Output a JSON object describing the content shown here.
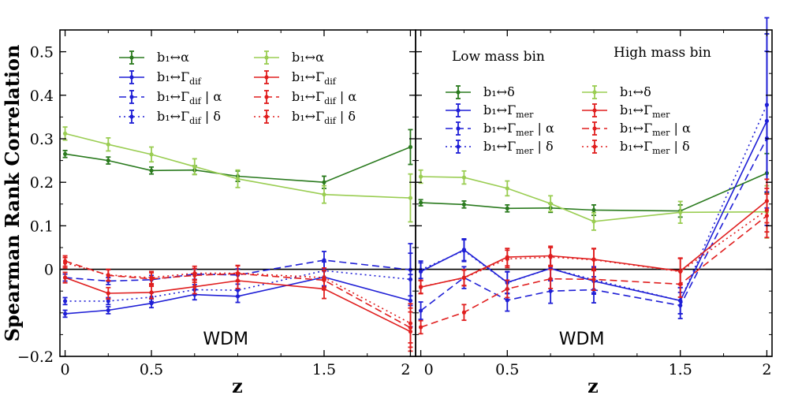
{
  "chart_data": {
    "type": "line",
    "ylabel": "Spearman Rank Correlation",
    "xlabel": "z",
    "ylim": [
      -0.2,
      0.55
    ],
    "xlim": [
      -0.03,
      2.03
    ],
    "yticks": [
      {
        "v": -0.2,
        "t": "−0.2"
      },
      {
        "v": 0,
        "t": "0"
      },
      {
        "v": 0.1,
        "t": "0.1"
      },
      {
        "v": 0.2,
        "t": "0.2"
      },
      {
        "v": 0.3,
        "t": "0.3"
      },
      {
        "v": 0.4,
        "t": "0.4"
      },
      {
        "v": 0.5,
        "t": "0.5"
      }
    ],
    "xticks": [
      {
        "v": 0,
        "t": "0"
      },
      {
        "v": 0.5,
        "t": "0.5"
      },
      {
        "v": 1.5,
        "t": "1.5"
      },
      {
        "v": 2,
        "t": "2"
      }
    ],
    "x": [
      0,
      0.25,
      0.5,
      0.75,
      1.0,
      1.5,
      2.0
    ],
    "colors": {
      "dark_green": "#2a7a1e",
      "light_green": "#9acd52",
      "blue": "#1f1fd6",
      "red": "#e01e1e"
    },
    "panels": [
      {
        "annotation": "WDM",
        "legend_left": [
          {
            "label": "b₁↔α",
            "color": "dark_green",
            "style": "solid"
          },
          {
            "label": "b₁↔Γdif",
            "color": "blue",
            "style": "solid"
          },
          {
            "label": "b₁↔Γdif | α",
            "color": "blue",
            "style": "dashed"
          },
          {
            "label": "b₁↔Γdif | δ",
            "color": "blue",
            "style": "dotted"
          }
        ],
        "legend_right": [
          {
            "label": "b₁↔α",
            "color": "light_green",
            "style": "solid"
          },
          {
            "label": "b₁↔Γdif",
            "color": "red",
            "style": "solid"
          },
          {
            "label": "b₁↔Γdif | α",
            "color": "red",
            "style": "dashed"
          },
          {
            "label": "b₁↔Γdif | δ",
            "color": "red",
            "style": "dotted"
          }
        ],
        "series": [
          {
            "color": "dark_green",
            "style": "solid",
            "values": [
              0.265,
              0.25,
              0.227,
              0.228,
              0.214,
              0.2,
              0.281
            ],
            "err": [
              0.008,
              0.008,
              0.008,
              0.01,
              0.012,
              0.014,
              0.04
            ]
          },
          {
            "color": "light_green",
            "style": "solid",
            "values": [
              0.312,
              0.287,
              0.264,
              0.236,
              0.208,
              0.172,
              0.164
            ],
            "err": [
              0.015,
              0.015,
              0.017,
              0.018,
              0.02,
              0.02,
              0.055
            ]
          },
          {
            "color": "blue",
            "style": "solid",
            "values": [
              -0.102,
              -0.094,
              -0.078,
              -0.058,
              -0.062,
              -0.018,
              -0.072
            ],
            "err": [
              0.008,
              0.008,
              0.01,
              0.012,
              0.014,
              0.02,
              0.06
            ]
          },
          {
            "color": "blue",
            "style": "dashed",
            "values": [
              -0.019,
              -0.027,
              -0.024,
              -0.011,
              -0.013,
              0.021,
              -0.001
            ],
            "err": [
              0.008,
              0.008,
              0.01,
              0.012,
              0.014,
              0.02,
              0.06
            ]
          },
          {
            "color": "blue",
            "style": "dotted",
            "values": [
              -0.073,
              -0.073,
              -0.064,
              -0.047,
              -0.048,
              -0.003,
              -0.023
            ],
            "err": [
              0.008,
              0.008,
              0.01,
              0.012,
              0.014,
              0.02,
              0.06
            ]
          },
          {
            "color": "red",
            "style": "solid",
            "values": [
              -0.019,
              -0.055,
              -0.053,
              -0.04,
              -0.026,
              -0.045,
              -0.143
            ],
            "err": [
              0.012,
              0.013,
              0.014,
              0.016,
              0.018,
              0.022,
              0.045
            ]
          },
          {
            "color": "red",
            "style": "dashed",
            "values": [
              0.019,
              -0.014,
              -0.022,
              -0.014,
              -0.01,
              -0.025,
              -0.134
            ],
            "err": [
              0.012,
              0.013,
              0.014,
              0.016,
              0.018,
              0.022,
              0.045
            ]
          },
          {
            "color": "red",
            "style": "dotted",
            "values": [
              0.015,
              -0.013,
              -0.019,
              -0.009,
              -0.009,
              -0.019,
              -0.124
            ],
            "err": [
              0.012,
              0.013,
              0.014,
              0.016,
              0.018,
              0.022,
              0.045
            ]
          }
        ]
      },
      {
        "annotation": "WDM",
        "header_left": "Low mass bin",
        "header_right": "High mass bin",
        "legend_left": [
          {
            "label": "b₁↔δ",
            "color": "dark_green",
            "style": "solid"
          },
          {
            "label": "b₁↔Γmer",
            "color": "blue",
            "style": "solid"
          },
          {
            "label": "b₁↔Γmer | α",
            "color": "blue",
            "style": "dashed"
          },
          {
            "label": "b₁↔Γmer | δ",
            "color": "blue",
            "style": "dotted"
          }
        ],
        "legend_right": [
          {
            "label": "b₁↔δ",
            "color": "light_green",
            "style": "solid"
          },
          {
            "label": "b₁↔Γmer",
            "color": "red",
            "style": "solid"
          },
          {
            "label": "b₁↔Γmer | α",
            "color": "red",
            "style": "dashed"
          },
          {
            "label": "b₁↔Γmer | δ",
            "color": "red",
            "style": "dotted"
          }
        ],
        "series": [
          {
            "color": "dark_green",
            "style": "solid",
            "values": [
              0.153,
              0.149,
              0.14,
              0.141,
              0.136,
              0.134,
              0.221
            ],
            "err": [
              0.007,
              0.008,
              0.008,
              0.01,
              0.012,
              0.014,
              0.045
            ]
          },
          {
            "color": "light_green",
            "style": "solid",
            "values": [
              0.213,
              0.211,
              0.186,
              0.151,
              0.11,
              0.131,
              0.132
            ],
            "err": [
              0.015,
              0.015,
              0.017,
              0.018,
              0.02,
              0.025,
              0.06
            ]
          },
          {
            "color": "blue",
            "style": "solid",
            "values": [
              -0.005,
              0.045,
              -0.03,
              0.002,
              -0.027,
              -0.072,
              0.341
            ],
            "err": [
              0.02,
              0.025,
              0.025,
              0.028,
              0.03,
              0.03,
              0.2
            ]
          },
          {
            "color": "blue",
            "style": "dashed",
            "values": [
              -0.095,
              -0.019,
              -0.071,
              -0.05,
              -0.047,
              -0.083,
              0.301
            ],
            "err": [
              0.02,
              0.025,
              0.025,
              0.028,
              0.03,
              0.03,
              0.2
            ]
          },
          {
            "color": "blue",
            "style": "dotted",
            "values": [
              -0.001,
              0.043,
              -0.031,
              0.002,
              -0.024,
              -0.072,
              0.378
            ],
            "err": [
              0.02,
              0.025,
              0.025,
              0.028,
              0.03,
              0.03,
              0.2
            ]
          },
          {
            "color": "red",
            "style": "solid",
            "values": [
              -0.041,
              -0.019,
              0.028,
              0.031,
              0.023,
              -0.004,
              0.157
            ],
            "err": [
              0.015,
              0.018,
              0.02,
              0.022,
              0.025,
              0.03,
              0.05
            ]
          },
          {
            "color": "red",
            "style": "dashed",
            "values": [
              -0.133,
              -0.099,
              -0.045,
              -0.022,
              -0.023,
              -0.034,
              0.123
            ],
            "err": [
              0.015,
              0.018,
              0.02,
              0.022,
              0.025,
              0.03,
              0.05
            ]
          },
          {
            "color": "red",
            "style": "dotted",
            "values": [
              -0.04,
              -0.02,
              0.024,
              0.028,
              0.022,
              -0.005,
              0.136
            ],
            "err": [
              0.015,
              0.018,
              0.02,
              0.022,
              0.025,
              0.03,
              0.05
            ]
          }
        ]
      }
    ]
  }
}
